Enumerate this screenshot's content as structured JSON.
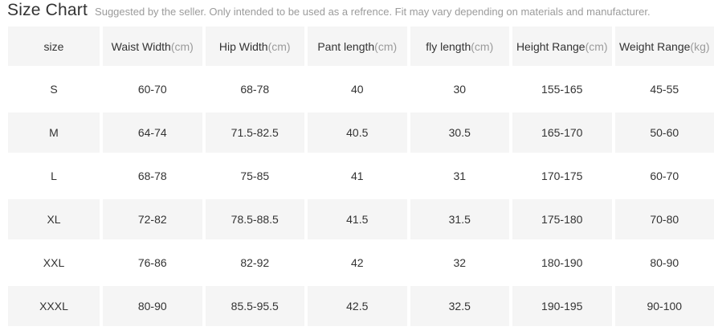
{
  "header": {
    "title": "Size Chart",
    "subtitle": "Suggested by the seller. Only intended to be used as a refrence. Fit may vary depending on materials and manufacturer."
  },
  "colors": {
    "cell_bg": "#f5f5f5",
    "text_primary": "#333333",
    "text_muted": "#9b9b9b"
  },
  "table": {
    "columns": [
      {
        "label": "size",
        "unit": ""
      },
      {
        "label": "Waist Width",
        "unit": "(cm)"
      },
      {
        "label": "Hip Width",
        "unit": "(cm)"
      },
      {
        "label": "Pant length",
        "unit": "(cm)"
      },
      {
        "label": "fly length",
        "unit": "(cm)"
      },
      {
        "label": "Height Range",
        "unit": "(cm)"
      },
      {
        "label": "Weight Range",
        "unit": "(kg)"
      }
    ],
    "rows": [
      [
        "S",
        "60-70",
        "68-78",
        "40",
        "30",
        "155-165",
        "45-55"
      ],
      [
        "M",
        "64-74",
        "71.5-82.5",
        "40.5",
        "30.5",
        "165-170",
        "50-60"
      ],
      [
        "L",
        "68-78",
        "75-85",
        "41",
        "31",
        "170-175",
        "60-70"
      ],
      [
        "XL",
        "72-82",
        "78.5-88.5",
        "41.5",
        "31.5",
        "175-180",
        "70-80"
      ],
      [
        "XXL",
        "76-86",
        "82-92",
        "42",
        "32",
        "180-190",
        "80-90"
      ],
      [
        "XXXL",
        "80-90",
        "85.5-95.5",
        "42.5",
        "32.5",
        "190-195",
        "90-100"
      ]
    ]
  },
  "chart_data": {
    "type": "table",
    "title": "Size Chart",
    "columns": [
      "size",
      "Waist Width(cm)",
      "Hip Width(cm)",
      "Pant length(cm)",
      "fly length(cm)",
      "Height Range(cm)",
      "Weight Range(kg)"
    ],
    "rows": [
      [
        "S",
        "60-70",
        "68-78",
        "40",
        "30",
        "155-165",
        "45-55"
      ],
      [
        "M",
        "64-74",
        "71.5-82.5",
        "40.5",
        "30.5",
        "165-170",
        "50-60"
      ],
      [
        "L",
        "68-78",
        "75-85",
        "41",
        "31",
        "170-175",
        "60-70"
      ],
      [
        "XL",
        "72-82",
        "78.5-88.5",
        "41.5",
        "31.5",
        "175-180",
        "70-80"
      ],
      [
        "XXL",
        "76-86",
        "82-92",
        "42",
        "32",
        "180-190",
        "80-90"
      ],
      [
        "XXXL",
        "80-90",
        "85.5-95.5",
        "42.5",
        "32.5",
        "190-195",
        "90-100"
      ]
    ]
  }
}
